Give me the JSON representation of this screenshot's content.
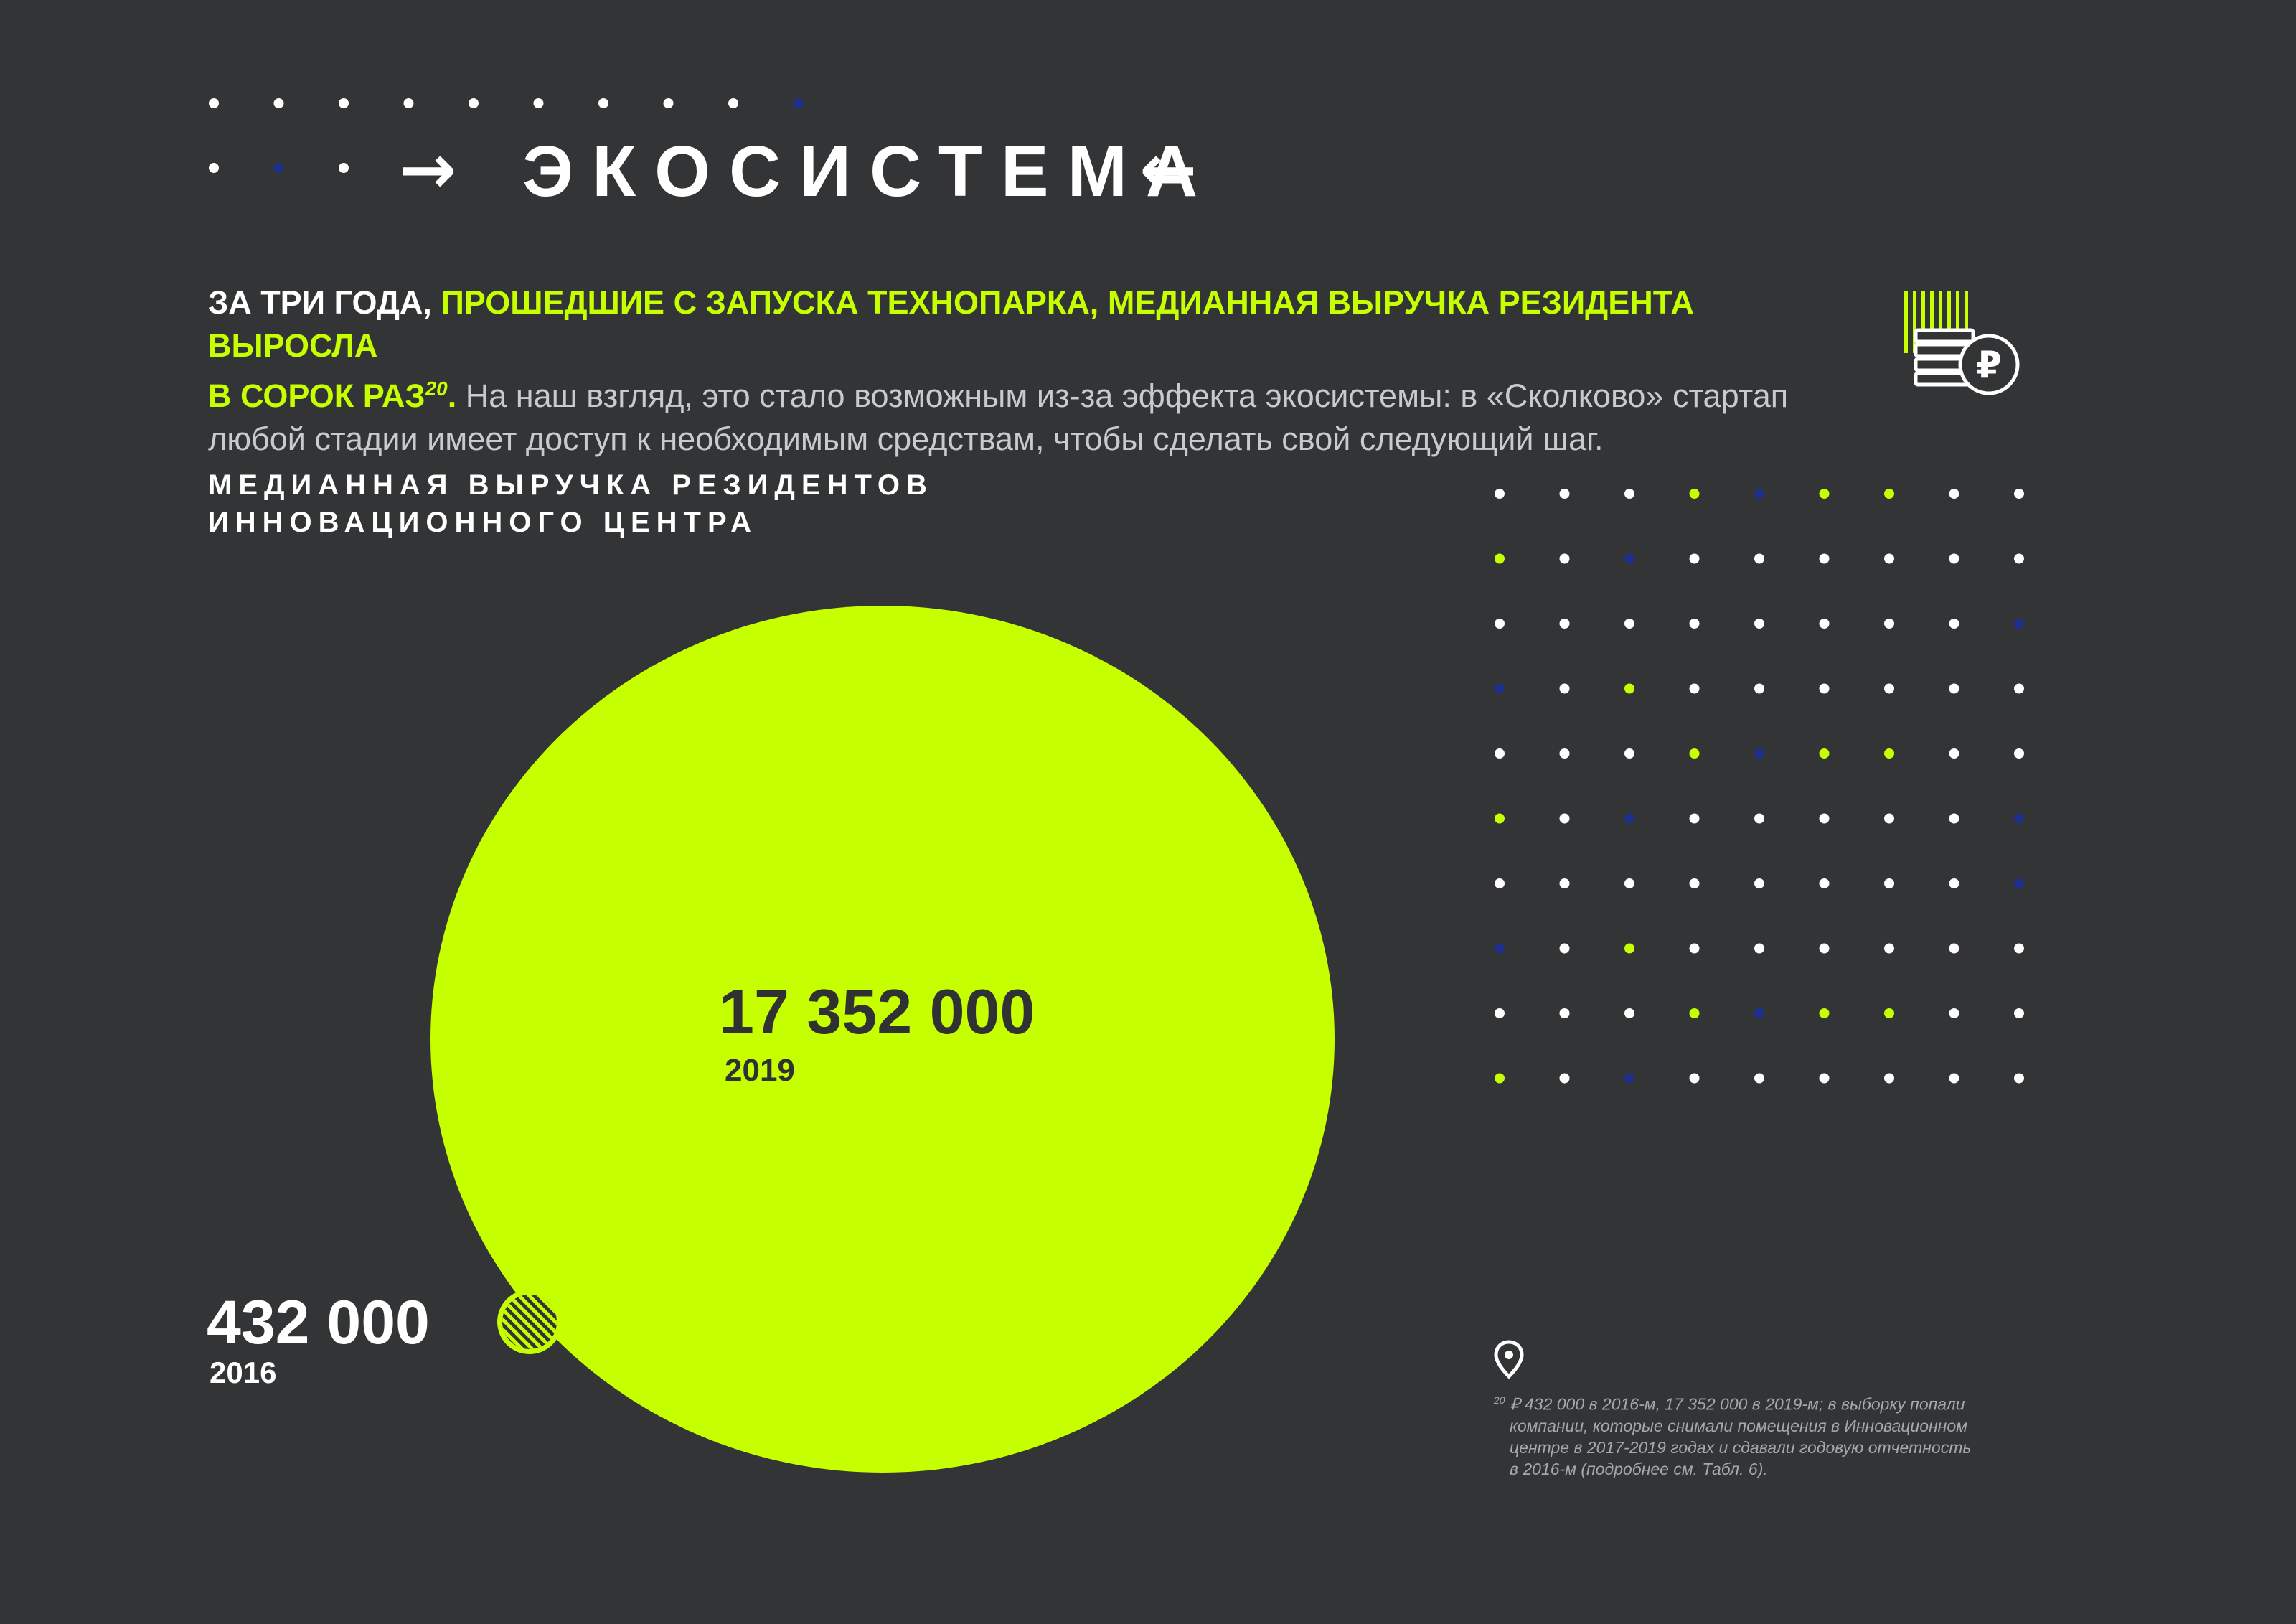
{
  "header": {
    "title": "ЭКОСИСТЕМА",
    "arrow_right": "→",
    "arrow_left": "←",
    "dot_colors": [
      "#ffffff",
      "#1e2f8c",
      "#c6ff00"
    ]
  },
  "intro": {
    "lead": "ЗА ТРИ ГОДА, ",
    "highlight_1": "ПРОШЕДШИЕ С ЗАПУСКА ТЕХНОПАРКА, МЕДИАННАЯ ВЫРУЧКА РЕЗИДЕНТА ВЫРОСЛА",
    "highlight_2": "В СОРОК РАЗ",
    "footnote_ref": "20",
    "period": ".",
    "body": " На наш взгляд, это стало возможным из-за эффекта экосистемы: в «Сколково» стартап любой стадии имеет доступ к необходимым средствам, чтобы сделать свой следующий шаг."
  },
  "icons": {
    "money": "ruble-coins-icon",
    "pin": "location-pin-icon"
  },
  "chart_data": {
    "type": "bubble",
    "title": "МЕДИАННАЯ ВЫРУЧКА РЕЗИДЕНТОВ\nИННОВАЦИОННОГО ЦЕНТРА",
    "series": [
      {
        "year": "2016",
        "value": 432000,
        "label": "432 000"
      },
      {
        "year": "2019",
        "value": 17352000,
        "label": "17 352 000"
      }
    ],
    "colors": {
      "accent": "#c6ff00",
      "background": "#333435",
      "dark_text": "#2f3133"
    }
  },
  "footnote": {
    "number": "20",
    "lines": [
      "₽ 432 000 в 2016-м, 17 352 000 в 2019-м; в выборку попали",
      "компании, которые снимали помещения в Инновационном",
      "центре в 2017-2019 годах и сдавали годовую отчетность",
      "в 2016-м (подробнее см. Табл. 6)."
    ]
  }
}
